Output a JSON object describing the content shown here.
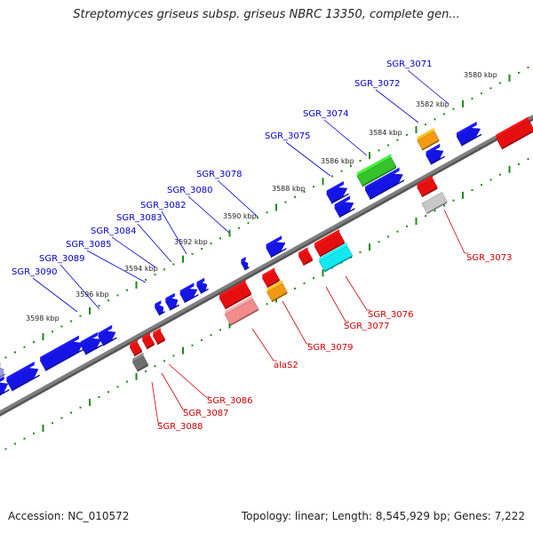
{
  "title": "Streptomyces griseus subsp. griseus NBRC 13350, complete gen...",
  "footer": {
    "accession": "Accession: NC_010572",
    "summary": "Topology: linear; Length: 8,545,929 bp; Genes: 7,222"
  },
  "colors": {
    "backbone": "#7f7f7f",
    "forward_label": "#0000cc",
    "reverse_label": "#cc0000",
    "tick": "#1a8a1a",
    "gene_blue": "#1414e6",
    "gene_red": "#e60f0f",
    "gene_pink": "#f08c8c",
    "gene_orange": "#f29a12",
    "gene_green": "#35c22c",
    "gene_cyan": "#14e8f0",
    "gene_gray": "#c8c8c8",
    "gene_dark": "#6e6e6e",
    "gene_lightblue": "#9a9aee"
  },
  "kbp_labels": [
    "3580 kbp",
    "3582 kbp",
    "3584 kbp",
    "3586 kbp",
    "3588 kbp",
    "3590 kbp",
    "3592 kbp",
    "3594 kbp",
    "3596 kbp",
    "3598 kbp"
  ],
  "forward_gene_labels": [
    "SGR_3071",
    "SGR_3072",
    "SGR_3074",
    "SGR_3075",
    "SGR_3078",
    "SGR_3080",
    "SGR_3082",
    "SGR_3083",
    "SGR_3084",
    "SGR_3085",
    "SGR_3089",
    "SGR_3090"
  ],
  "reverse_gene_labels": [
    "SGR_3073",
    "SGR_3076",
    "SGR_3077",
    "SGR_3079",
    "alaS2",
    "SGR_3086",
    "SGR_3087",
    "SGR_3088"
  ]
}
